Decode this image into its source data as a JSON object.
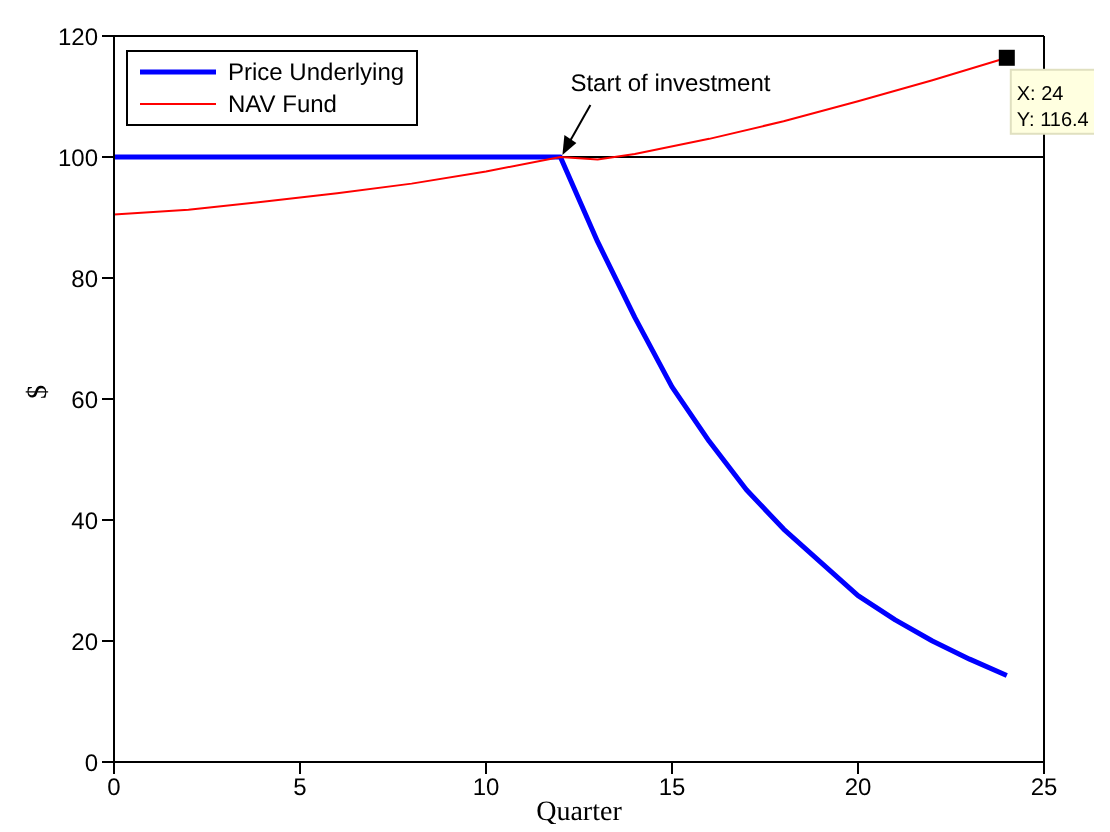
{
  "chart_data": {
    "type": "line",
    "xlabel": "Quarter",
    "ylabel": "$",
    "xlim": [
      0,
      25
    ],
    "ylim": [
      0,
      120
    ],
    "xticks": [
      0,
      5,
      10,
      15,
      20,
      25
    ],
    "yticks": [
      0,
      20,
      40,
      60,
      80,
      100,
      120
    ],
    "legend": "top left",
    "marker": "none",
    "line_style": "solid",
    "series": [
      {
        "name": "Price Underlying",
        "color": "#0000ff",
        "x": [
          0,
          12,
          13,
          14,
          15,
          16,
          17,
          18,
          19,
          20,
          21,
          22,
          23,
          24
        ],
        "values": [
          100,
          100,
          86,
          73.5,
          62,
          53,
          45,
          38.5,
          33,
          27.5,
          23.5,
          20,
          17,
          14.3
        ]
      },
      {
        "name": "NAV Fund",
        "color": "#ff0000",
        "x": [
          0,
          2,
          4,
          6,
          8,
          10,
          12,
          13,
          14,
          16,
          18,
          20,
          22,
          24
        ],
        "values": [
          90.5,
          91.3,
          92.6,
          94,
          95.6,
          97.6,
          100,
          99.6,
          100.5,
          103,
          105.9,
          109.2,
          112.7,
          116.4
        ]
      }
    ],
    "ref_lines": [
      {
        "axis": "y",
        "value": 100,
        "color": "#000000"
      }
    ],
    "annotations": [
      {
        "text": "Start of investment",
        "x": 12,
        "y": 100
      },
      {
        "text": "X: 24\nY: 116.4",
        "x": 24,
        "y": 116.4
      }
    ]
  }
}
